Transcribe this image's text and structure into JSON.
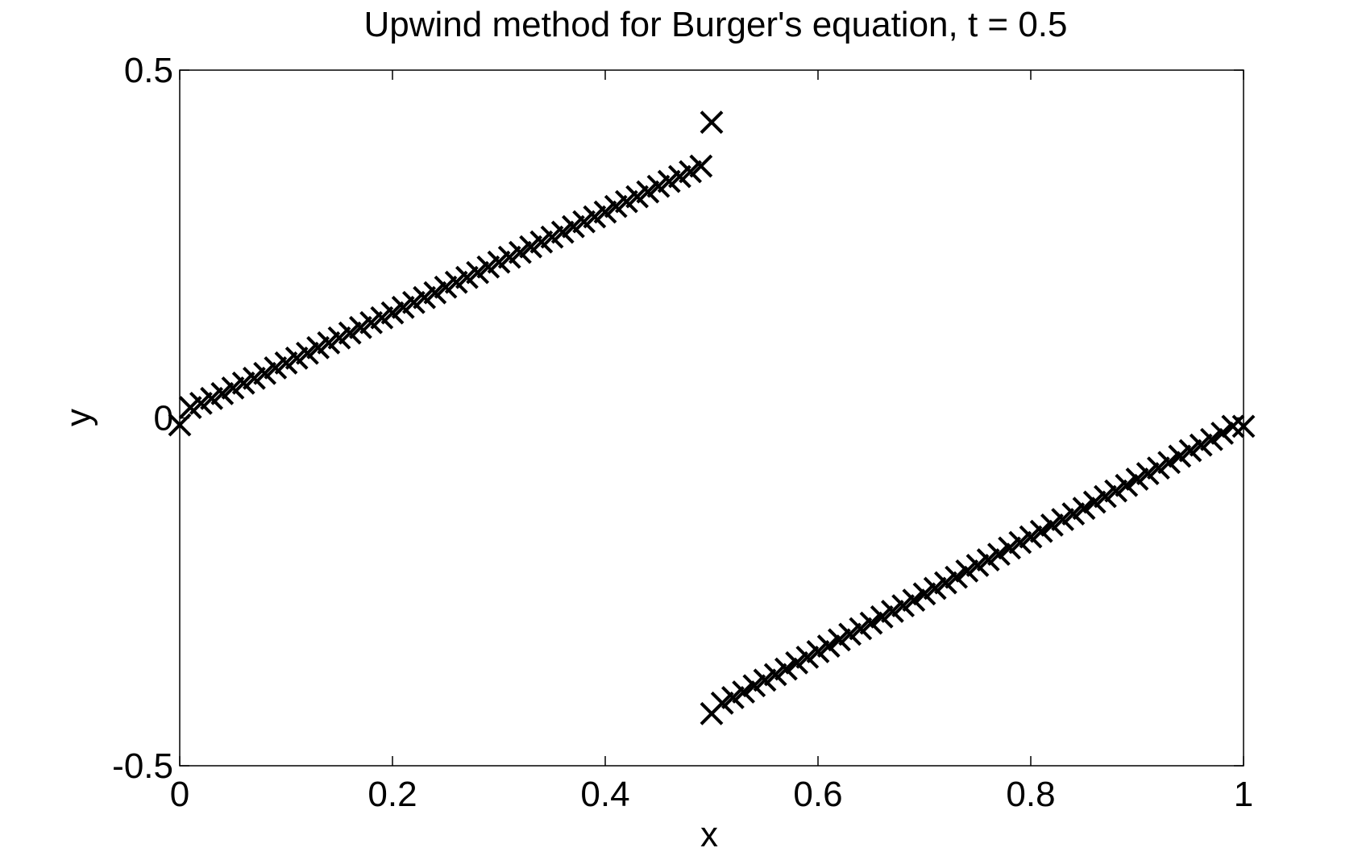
{
  "chart_data": {
    "type": "scatter",
    "title": "Upwind method for Burger's equation, t = 0.5",
    "xlabel": "x",
    "ylabel": "y",
    "xlim": [
      0,
      1
    ],
    "ylim": [
      -0.5,
      0.5
    ],
    "x_ticks": [
      "0",
      "0.2",
      "0.4",
      "0.6",
      "0.8",
      "1"
    ],
    "y_ticks": [
      "-0.5",
      "0",
      "0.5"
    ],
    "x_tick_values": [
      0,
      0.2,
      0.4,
      0.6,
      0.8,
      1
    ],
    "y_tick_values": [
      -0.5,
      0,
      0.5
    ],
    "marker": "x",
    "marker_color": "#000000",
    "grid": false,
    "series": [
      {
        "values_description_free": true,
        "x": [
          0,
          0.01,
          0.02,
          0.03,
          0.04,
          0.05,
          0.06,
          0.07,
          0.08,
          0.09,
          0.1,
          0.11,
          0.12,
          0.13,
          0.14,
          0.15,
          0.16,
          0.17,
          0.18,
          0.19,
          0.2,
          0.21,
          0.22,
          0.23,
          0.24,
          0.25,
          0.26,
          0.27,
          0.28,
          0.29,
          0.3,
          0.31,
          0.32,
          0.33,
          0.34,
          0.35,
          0.36,
          0.37,
          0.38,
          0.39,
          0.4,
          0.41,
          0.42,
          0.43,
          0.44,
          0.45,
          0.46,
          0.47,
          0.48,
          0.49,
          0.5
        ],
        "y": [
          -0.01,
          0.015,
          0.021,
          0.028,
          0.035,
          0.043,
          0.05,
          0.057,
          0.064,
          0.072,
          0.079,
          0.086,
          0.093,
          0.101,
          0.108,
          0.115,
          0.122,
          0.13,
          0.137,
          0.144,
          0.151,
          0.159,
          0.166,
          0.173,
          0.18,
          0.188,
          0.195,
          0.202,
          0.209,
          0.217,
          0.224,
          0.231,
          0.238,
          0.246,
          0.253,
          0.26,
          0.267,
          0.275,
          0.282,
          0.289,
          0.296,
          0.304,
          0.311,
          0.318,
          0.325,
          0.333,
          0.34,
          0.347,
          0.354,
          0.362,
          0.425
        ]
      },
      {
        "x": [
          0.5,
          0.51,
          0.52,
          0.53,
          0.54,
          0.55,
          0.56,
          0.57,
          0.58,
          0.59,
          0.6,
          0.61,
          0.62,
          0.63,
          0.64,
          0.65,
          0.66,
          0.67,
          0.68,
          0.69,
          0.7,
          0.71,
          0.72,
          0.73,
          0.74,
          0.75,
          0.76,
          0.77,
          0.78,
          0.79,
          0.8,
          0.81,
          0.82,
          0.83,
          0.84,
          0.85,
          0.86,
          0.87,
          0.88,
          0.89,
          0.9,
          0.91,
          0.92,
          0.93,
          0.94,
          0.95,
          0.96,
          0.97,
          0.98,
          0.99,
          1.0
        ],
        "y": [
          -0.425,
          -0.41,
          -0.402,
          -0.394,
          -0.385,
          -0.377,
          -0.369,
          -0.361,
          -0.352,
          -0.344,
          -0.336,
          -0.328,
          -0.319,
          -0.311,
          -0.303,
          -0.295,
          -0.286,
          -0.278,
          -0.27,
          -0.262,
          -0.253,
          -0.245,
          -0.237,
          -0.229,
          -0.22,
          -0.212,
          -0.204,
          -0.196,
          -0.187,
          -0.179,
          -0.171,
          -0.163,
          -0.154,
          -0.146,
          -0.138,
          -0.13,
          -0.121,
          -0.113,
          -0.105,
          -0.097,
          -0.088,
          -0.08,
          -0.072,
          -0.064,
          -0.055,
          -0.047,
          -0.039,
          -0.031,
          -0.022,
          -0.012,
          -0.012
        ]
      }
    ]
  }
}
